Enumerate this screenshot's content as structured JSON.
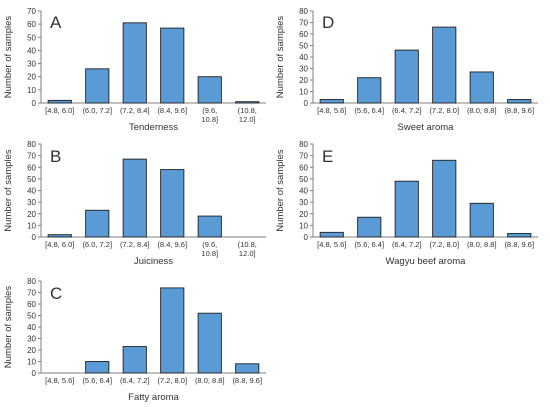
{
  "chart_data": [
    {
      "type": "bar",
      "panel_letter": "A",
      "xlabel": "Tenderness",
      "ylabel": "Number of samples",
      "ylim": [
        0,
        70
      ],
      "yticks": [
        0,
        10,
        20,
        30,
        40,
        50,
        60,
        70
      ],
      "categories": [
        "[4.8, 6.0]",
        "(6.0, 7.2]",
        "(7.2, 8.4]",
        "(8.4, 9.6]",
        "(9.6, 10.8]",
        "(10.8, 12.0]"
      ],
      "values": [
        2,
        26,
        61,
        57,
        20,
        1
      ],
      "bar_color": "#5b9bd5",
      "grid": false
    },
    {
      "type": "bar",
      "panel_letter": "B",
      "xlabel": "Juiciness",
      "ylabel": "Number of samples",
      "ylim": [
        0,
        80
      ],
      "yticks": [
        0,
        10,
        20,
        30,
        40,
        50,
        60,
        70,
        80
      ],
      "categories": [
        "[4.8, 6.0]",
        "(6.0, 7.2]",
        "(7.2, 8.4]",
        "(8.4, 9.6]",
        "(9.6, 10.8]",
        "(10.8, 12.0]"
      ],
      "values": [
        2,
        23,
        67,
        58,
        18,
        0
      ],
      "bar_color": "#5b9bd5",
      "grid": false
    },
    {
      "type": "bar",
      "panel_letter": "C",
      "xlabel": "Fatty aroma",
      "ylabel": "Number of samples",
      "ylim": [
        0,
        80
      ],
      "yticks": [
        0,
        10,
        20,
        30,
        40,
        50,
        60,
        70,
        80
      ],
      "categories": [
        "[4.8, 5.6]",
        "(5.6, 6.4]",
        "(6.4, 7.2]",
        "(7.2, 8.0]",
        "(8.0, 8.8]",
        "(8.8, 9.6]"
      ],
      "values": [
        0,
        10,
        23,
        74,
        52,
        8
      ],
      "bar_color": "#5b9bd5",
      "grid": false
    },
    {
      "type": "bar",
      "panel_letter": "D",
      "xlabel": "Sweet aroma",
      "ylabel": "Number of samples",
      "ylim": [
        0,
        80
      ],
      "yticks": [
        0,
        10,
        20,
        30,
        40,
        50,
        60,
        70,
        80
      ],
      "categories": [
        "[4.8, 5.6]",
        "(5.6, 6.4]",
        "(6.4, 7.2]",
        "(7.2, 8.0]",
        "(8.0, 8.8]",
        "(8.8, 9.6]"
      ],
      "values": [
        3,
        22,
        46,
        66,
        27,
        3
      ],
      "bar_color": "#5b9bd5",
      "grid": false
    },
    {
      "type": "bar",
      "panel_letter": "E",
      "xlabel": "Wagyu beef aroma",
      "ylabel": "Number of samples",
      "ylim": [
        0,
        80
      ],
      "yticks": [
        0,
        10,
        20,
        30,
        40,
        50,
        60,
        70,
        80
      ],
      "categories": [
        "[4.8, 5.6]",
        "(5.6, 6.4]",
        "(6.4, 7.2]",
        "(7.2, 8.0]",
        "(8.0, 8.8]",
        "(8.8, 9.6]"
      ],
      "values": [
        4,
        17,
        48,
        66,
        29,
        3
      ],
      "bar_color": "#5b9bd5",
      "grid": false
    }
  ]
}
